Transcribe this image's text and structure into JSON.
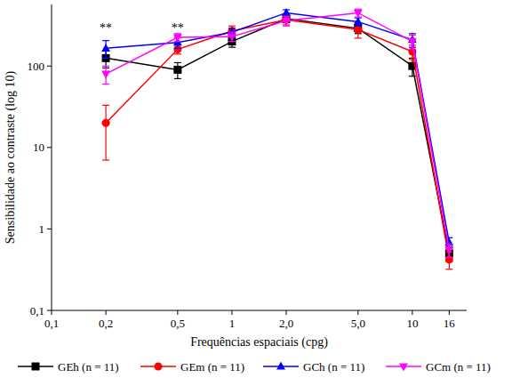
{
  "chart_data": {
    "type": "line",
    "x_label": "Frequências espaciais (cpg)",
    "y_label": "Sensibilidade ao contraste (log 10)",
    "log": true,
    "grid": false,
    "legend": "bottom",
    "x": [
      0.2,
      0.5,
      1,
      2,
      5,
      10,
      16
    ],
    "xlim": [
      0.1,
      20
    ],
    "xticks": [
      {
        "value": 0.1,
        "label": "0,1"
      },
      {
        "value": 0.2,
        "label": "0,2"
      },
      {
        "value": 0.5,
        "label": "0,5"
      },
      1,
      {
        "value": 2,
        "label": "2,0"
      },
      {
        "value": 5,
        "label": "5,0"
      },
      10,
      16
    ],
    "ylim": [
      0.1,
      570
    ],
    "yticks": [
      {
        "value": 0.1,
        "label": "0,1"
      },
      1,
      10,
      100
    ],
    "annotations": [
      {
        "text": "**",
        "x": 0.2,
        "y": 260
      },
      {
        "text": "**",
        "x": 0.5,
        "y": 260
      }
    ],
    "series": [
      {
        "name": "GEh (n = 11)",
        "color": "#000000",
        "marker": "square",
        "values": [
          125,
          90,
          200,
          380,
          290,
          100,
          0.5
        ],
        "errors": [
          30,
          20,
          30,
          40,
          40,
          25,
          0.1
        ]
      },
      {
        "name": "GEm (n = 11)",
        "color": "#ff0000",
        "marker": "circle",
        "values": [
          20,
          160,
          270,
          370,
          280,
          150,
          0.42
        ],
        "errors": [
          13,
          20,
          40,
          50,
          60,
          30,
          0.1
        ]
      },
      {
        "name": "GCh (n = 11)",
        "color": "#0000ff",
        "marker": "triangle",
        "values": [
          165,
          195,
          260,
          450,
          350,
          210,
          0.68
        ],
        "errors": [
          40,
          30,
          30,
          40,
          40,
          40,
          0.1
        ]
      },
      {
        "name": "GCm (n = 11)",
        "color": "#ff00ff",
        "marker": "triangle-down",
        "values": [
          80,
          225,
          230,
          360,
          450,
          200,
          0.55
        ],
        "errors": [
          20,
          25,
          30,
          50,
          50,
          40,
          0.1
        ]
      }
    ]
  }
}
